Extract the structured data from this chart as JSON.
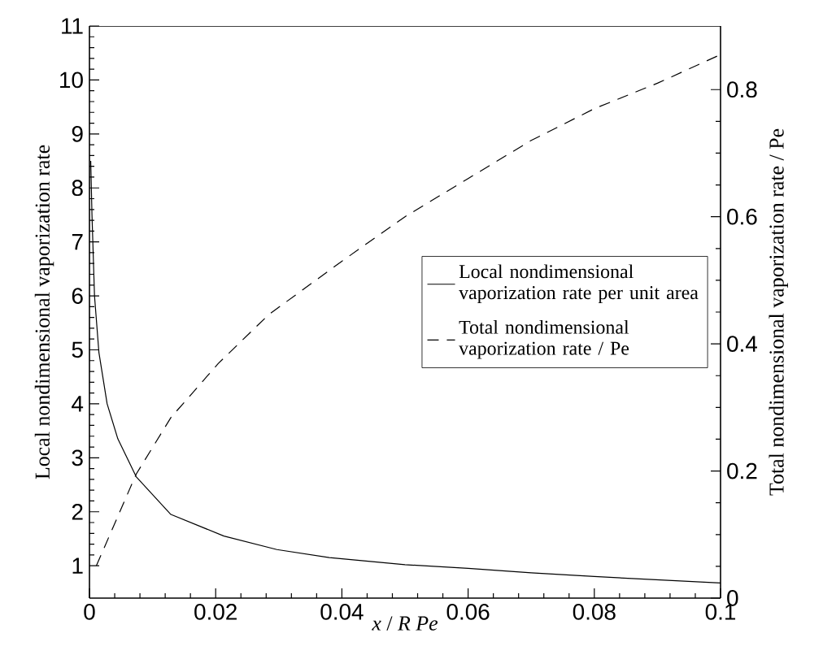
{
  "chart_data": {
    "type": "line",
    "xlabel": "*x* / *R Pe*",
    "ylabel": "Local nondimensional vaporization rate",
    "y2label": "Total nondimensional vaporization rate / Pe",
    "xlim": [
      0,
      0.1
    ],
    "xticks": [
      0,
      0.02,
      0.04,
      0.06,
      0.08,
      0.1
    ],
    "ylim": [
      0.4,
      11
    ],
    "yticks": [
      1,
      2,
      3,
      4,
      5,
      6,
      7,
      8,
      9,
      10,
      11
    ],
    "y2lim": [
      0,
      0.9
    ],
    "y2ticks": [
      0,
      0.2,
      0.4,
      0.6,
      0.8
    ],
    "legend": "right",
    "grid": false,
    "marker": "none",
    "series": [
      {
        "name": "Local nondimensional vaporization rate per unit area",
        "color": "#000000",
        "line_style": "solid",
        "x": [
          0.0002,
          0.0004,
          0.0008,
          0.0015,
          0.0028,
          0.0045,
          0.0074,
          0.0129,
          0.0213,
          0.0297,
          0.038,
          0.05,
          0.06,
          0.07,
          0.08,
          0.09,
          0.1
        ],
        "values": [
          8.5,
          7.5,
          6.0,
          4.95,
          4.0,
          3.35,
          2.65,
          1.95,
          1.55,
          1.3,
          1.15,
          1.02,
          0.95,
          0.87,
          0.8,
          0.74,
          0.68
        ]
      },
      {
        "name": "Total nondimensional vaporization rate / Pe",
        "color": "#000000",
        "line_style": "dashed",
        "axis": "y2",
        "x": [
          0.0011,
          0.0074,
          0.0129,
          0.0204,
          0.0284,
          0.04,
          0.05,
          0.06,
          0.07,
          0.08,
          0.09,
          0.1
        ],
        "values": [
          0.051,
          0.195,
          0.284,
          0.369,
          0.446,
          0.53,
          0.6,
          0.66,
          0.72,
          0.77,
          0.81,
          0.855
        ]
      }
    ]
  }
}
